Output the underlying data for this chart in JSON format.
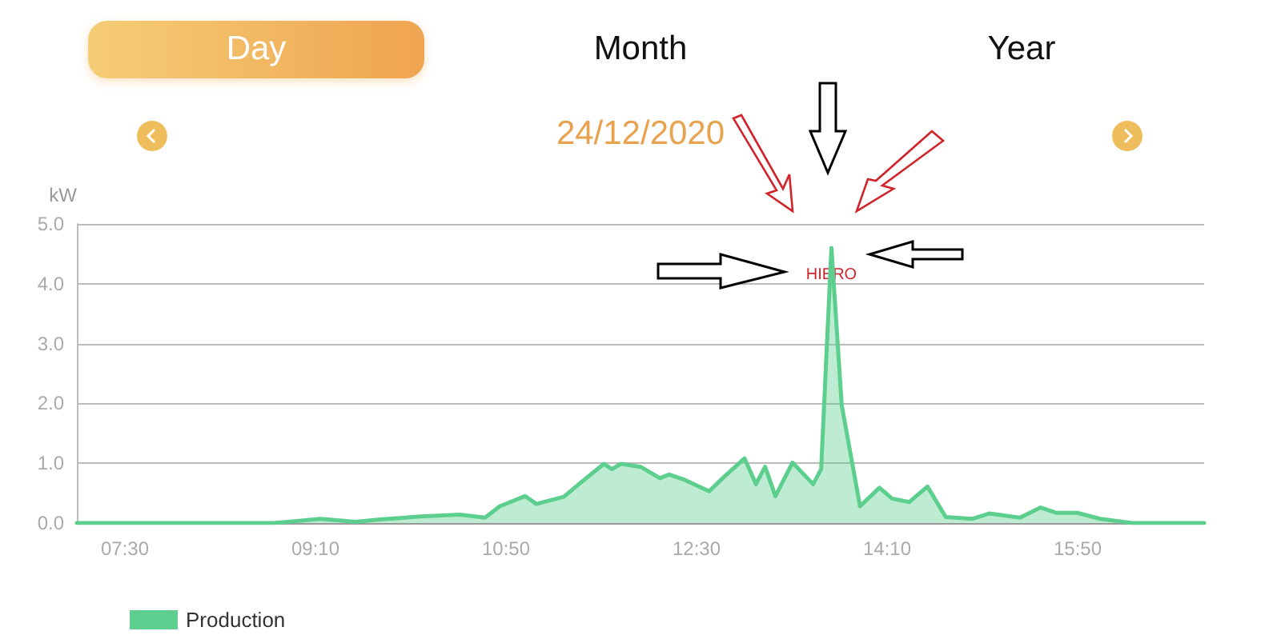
{
  "chart_data": {
    "type": "area",
    "title": "24/12/2020",
    "ylabel": "kW",
    "x": [
      7.08,
      8.8,
      8.93,
      9.21,
      9.52,
      9.73,
      10.09,
      10.43,
      10.65,
      10.78,
      11.0,
      11.1,
      11.34,
      11.49,
      11.69,
      11.76,
      11.84,
      12.01,
      12.18,
      12.26,
      12.4,
      12.61,
      12.74,
      12.92,
      13.02,
      13.1,
      13.19,
      13.34,
      13.52,
      13.59,
      13.68,
      13.77,
      13.93,
      14.1,
      14.21,
      14.36,
      14.52,
      14.68,
      14.91,
      15.06,
      15.33,
      15.51,
      15.65,
      15.83,
      16.03,
      16.31,
      16.94
    ],
    "series": [
      {
        "name": "Production",
        "color": "#5ccf8e",
        "values": [
          0,
          0,
          0.02,
          0.07,
          0.02,
          0.06,
          0.11,
          0.14,
          0.09,
          0.28,
          0.45,
          0.32,
          0.44,
          0.68,
          0.99,
          0.9,
          0.99,
          0.94,
          0.75,
          0.81,
          0.72,
          0.53,
          0.77,
          1.08,
          0.65,
          0.94,
          0.45,
          1.01,
          0.65,
          0.9,
          4.6,
          1.97,
          0.28,
          0.59,
          0.41,
          0.35,
          0.61,
          0.1,
          0.07,
          0.16,
          0.09,
          0.26,
          0.17,
          0.17,
          0.07,
          0,
          0
        ]
      }
    ],
    "xlim": [
      7.08,
      16.94
    ],
    "xticks": [
      {
        "value": 7.5,
        "label": "07:30"
      },
      {
        "value": 9.1667,
        "label": "09:10"
      },
      {
        "value": 10.8333,
        "label": "10:50"
      },
      {
        "value": 12.5,
        "label": "12:30"
      },
      {
        "value": 14.1667,
        "label": "14:10"
      },
      {
        "value": 15.8333,
        "label": "15:50"
      }
    ],
    "ylim": [
      0,
      5
    ],
    "yticks": [
      {
        "value": 0,
        "label": "0.0"
      },
      {
        "value": 1,
        "label": "1.0"
      },
      {
        "value": 2,
        "label": "2.0"
      },
      {
        "value": 3,
        "label": "3.0"
      },
      {
        "value": 4,
        "label": "4.0"
      },
      {
        "value": 5,
        "label": "5.0"
      }
    ],
    "annotations": [
      "Day",
      "Month",
      "Year",
      {
        "text": "HIERO",
        "x": 13.68,
        "y": 4.6
      }
    ],
    "grid": "y",
    "legend": "bottom left",
    "marker": "none",
    "line_style": "solid"
  }
}
